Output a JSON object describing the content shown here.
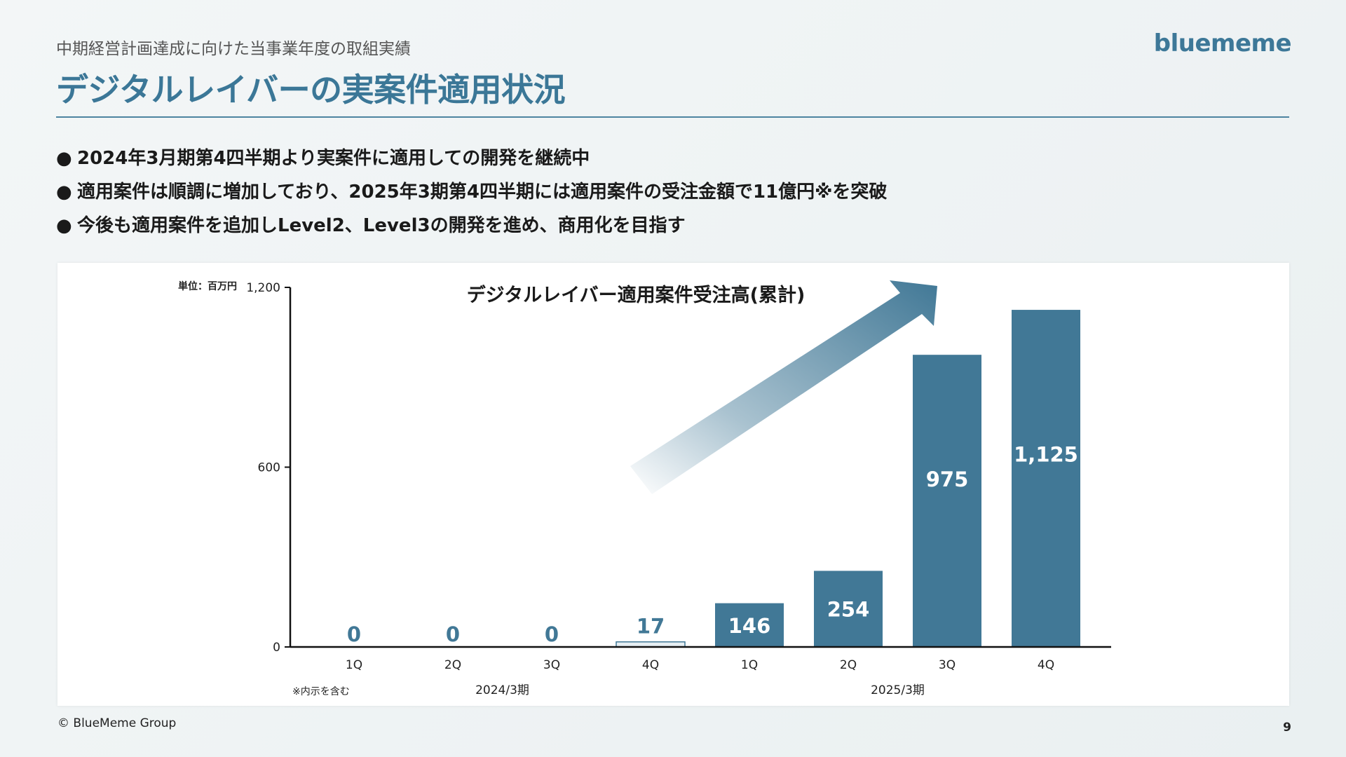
{
  "header": {
    "subtitle": "中期経営計画達成に向けた当事業年度の取組実績",
    "title": "デジタルレイバーの実案件適用状況",
    "logo": "bluememe"
  },
  "bullets": [
    "2024年3月期第4四半期より実案件に適用しての開発を継続中",
    "適用案件は順調に増加しており、2025年3期第4四半期には適用案件の受注金額で11億円※を突破",
    "今後も適用案件を追加しLevel2、Level3の開発を進め、商用化を目指す"
  ],
  "footer": {
    "copyright": "© BlueMeme Group",
    "page": "9"
  },
  "colors": {
    "title": "#3b7797",
    "bar": "#417896",
    "bar_light": "#e6eef3",
    "value_label_outside": "#417896",
    "value_label_inside": "#ffffff"
  },
  "chart_data": {
    "type": "bar",
    "title": "デジタルレイバー適用案件受注高(累計)",
    "unit_label": "単位：百万円",
    "note": "※内示を含む",
    "categories": [
      "1Q",
      "2Q",
      "3Q",
      "4Q",
      "1Q",
      "2Q",
      "3Q",
      "4Q"
    ],
    "groups": [
      {
        "label": "2024/3期",
        "categories": [
          "1Q",
          "2Q",
          "3Q",
          "4Q"
        ]
      },
      {
        "label": "2025/3期",
        "categories": [
          "1Q",
          "2Q",
          "3Q",
          "4Q"
        ]
      }
    ],
    "values": [
      0,
      0,
      0,
      17,
      146,
      254,
      975,
      1125
    ],
    "data_labels": [
      "0",
      "0",
      "0",
      "17",
      "146",
      "254",
      "975",
      "1,125"
    ],
    "ylim": [
      0,
      1200
    ],
    "yticks": [
      0,
      600,
      1200
    ],
    "ytick_labels": [
      "0",
      "600",
      "1,200"
    ],
    "grid": false,
    "legend": "none",
    "annotation": "upward-arrow"
  }
}
